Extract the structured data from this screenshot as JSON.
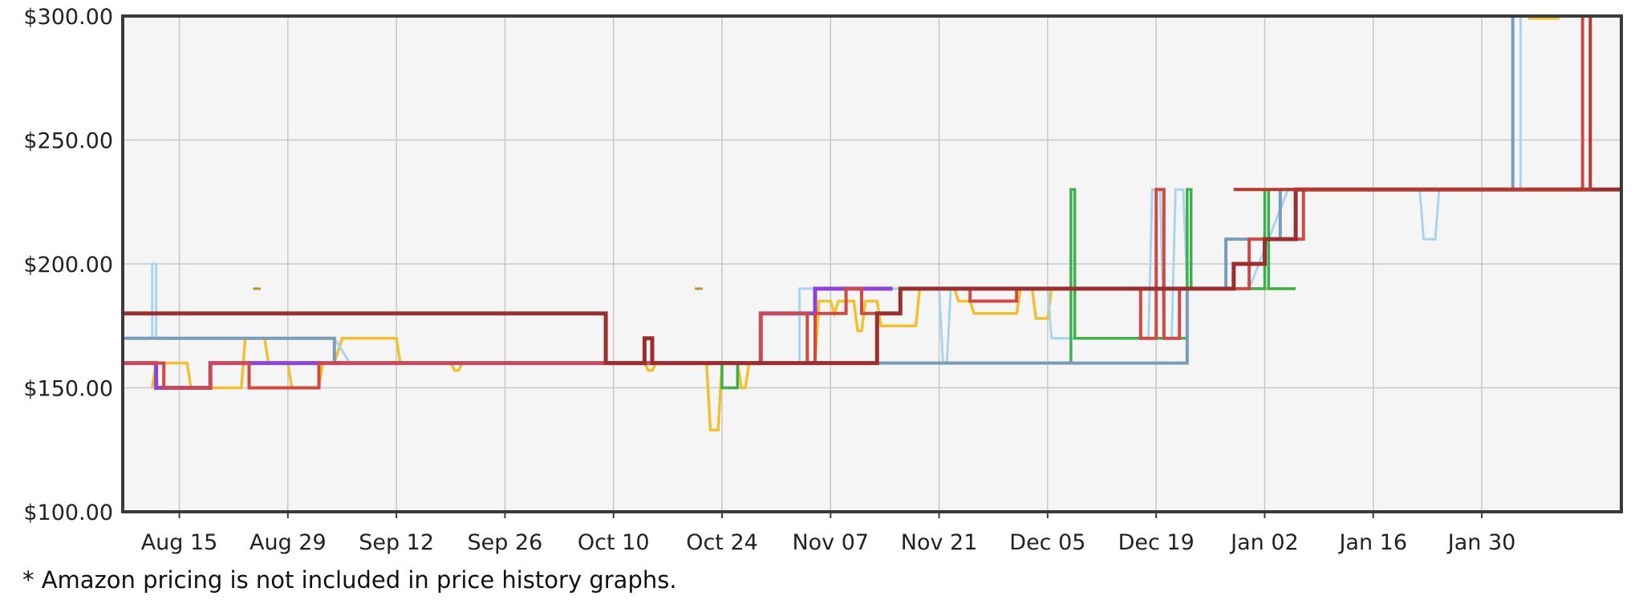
{
  "chart_data": {
    "type": "line",
    "subtype": "step",
    "title": "",
    "xlabel": "",
    "ylabel": "",
    "ylim": [
      100,
      300
    ],
    "y_ticks": [
      100,
      150,
      200,
      250,
      300
    ],
    "y_tick_labels": [
      "$100.00",
      "$150.00",
      "$200.00",
      "$250.00",
      "$300.00"
    ],
    "x_ticks": [
      "Aug 15",
      "Aug 29",
      "Sep 12",
      "Sep 26",
      "Oct 10",
      "Oct 24",
      "Nov 07",
      "Nov 21",
      "Dec 05",
      "Dec 19",
      "Jan 02",
      "Jan 16",
      "Jan 30"
    ],
    "xlim": [
      -7.3,
      186
    ],
    "grid": true,
    "legend": "none",
    "series": [
      {
        "color": "#f0c030",
        "width": 3.5,
        "points": [
          [
            -3.5,
            150
          ],
          [
            -3,
            160
          ],
          [
            1,
            160
          ],
          [
            1.5,
            150
          ],
          [
            8,
            150
          ],
          [
            8.5,
            170
          ],
          [
            11,
            170
          ],
          [
            11.5,
            160
          ],
          [
            14,
            160
          ],
          [
            14.5,
            150
          ],
          [
            18,
            150
          ],
          [
            18.5,
            160
          ],
          [
            20,
            160
          ],
          [
            21,
            170
          ],
          [
            28,
            170
          ],
          [
            28.5,
            160
          ],
          [
            35,
            160
          ],
          [
            35.5,
            157
          ],
          [
            36,
            157
          ],
          [
            36.5,
            160
          ],
          [
            60,
            160
          ],
          [
            60.5,
            157
          ],
          [
            61,
            157
          ],
          [
            61.5,
            160
          ],
          [
            68,
            160
          ],
          [
            68.5,
            133
          ],
          [
            69.5,
            133
          ],
          [
            70,
            160
          ],
          [
            72,
            160
          ],
          [
            72.5,
            150
          ],
          [
            73,
            150
          ],
          [
            73.5,
            160
          ],
          [
            82,
            160
          ],
          [
            82.5,
            185
          ],
          [
            84,
            185
          ],
          [
            84.5,
            180
          ],
          [
            85,
            185
          ],
          [
            87,
            185
          ],
          [
            87.5,
            173
          ],
          [
            88,
            173
          ],
          [
            88.5,
            185
          ],
          [
            90,
            185
          ],
          [
            90.5,
            175
          ],
          [
            95,
            175
          ],
          [
            95.5,
            190
          ],
          [
            100,
            190
          ],
          [
            100.5,
            185
          ],
          [
            102,
            185
          ],
          [
            102.5,
            180
          ],
          [
            108,
            180
          ],
          [
            108.5,
            190
          ],
          [
            110,
            190
          ],
          [
            110.5,
            178
          ],
          [
            112,
            178
          ],
          [
            112.5,
            190
          ],
          [
            144,
            190
          ]
        ]
      },
      {
        "color": "#a8d4f0",
        "width": 3,
        "points": [
          [
            -7.3,
            170
          ],
          [
            -3.5,
            170
          ],
          [
            -3.5,
            200
          ],
          [
            -3,
            200
          ],
          [
            -3,
            170
          ],
          [
            20,
            170
          ],
          [
            22,
            160
          ],
          [
            80,
            160
          ],
          [
            80,
            190
          ],
          [
            98,
            190
          ],
          [
            98.5,
            160
          ],
          [
            99,
            160
          ],
          [
            99.5,
            190
          ],
          [
            112,
            190
          ],
          [
            112.5,
            170
          ],
          [
            125,
            170
          ],
          [
            125.5,
            230
          ],
          [
            126.5,
            230
          ],
          [
            127,
            170
          ],
          [
            128,
            170
          ],
          [
            128.5,
            230
          ],
          [
            129.5,
            230
          ],
          [
            130,
            190
          ],
          [
            138,
            190
          ],
          [
            143,
            230
          ],
          [
            160,
            230
          ],
          [
            160.5,
            210
          ],
          [
            162,
            210
          ],
          [
            162.5,
            230
          ],
          [
            173,
            230
          ],
          [
            173,
            300
          ],
          [
            186,
            300
          ]
        ]
      },
      {
        "color": "#3cb04a",
        "width": 3.5,
        "points": [
          [
            -7.3,
            160
          ],
          [
            -3,
            160
          ],
          [
            -3,
            150
          ],
          [
            4,
            150
          ],
          [
            4,
            160
          ],
          [
            70,
            160
          ],
          [
            70,
            150
          ],
          [
            72,
            150
          ],
          [
            72,
            160
          ],
          [
            115,
            160
          ],
          [
            115,
            230
          ],
          [
            115.5,
            230
          ],
          [
            115.5,
            170
          ],
          [
            130,
            170
          ],
          [
            130,
            230
          ],
          [
            130.5,
            230
          ],
          [
            130.5,
            190
          ],
          [
            140,
            190
          ],
          [
            140,
            230
          ],
          [
            140.5,
            230
          ],
          [
            140.5,
            190
          ],
          [
            144,
            190
          ]
        ]
      },
      {
        "color": "#7a9cba",
        "width": 4,
        "points": [
          [
            -7.3,
            170
          ],
          [
            20,
            170
          ],
          [
            20,
            160
          ],
          [
            130,
            160
          ],
          [
            130,
            190
          ],
          [
            135,
            190
          ],
          [
            135,
            210
          ],
          [
            142,
            210
          ],
          [
            142,
            230
          ],
          [
            180,
            230
          ],
          [
            180,
            230
          ],
          [
            172,
            230
          ],
          [
            172,
            300
          ],
          [
            186,
            300
          ]
        ]
      },
      {
        "color": "#8e44d8",
        "width": 5,
        "points": [
          [
            -7.3,
            160
          ],
          [
            -3,
            160
          ],
          [
            -3,
            150
          ],
          [
            4,
            150
          ],
          [
            4,
            160
          ],
          [
            20,
            160
          ],
          [
            20,
            160
          ],
          [
            75,
            160
          ],
          [
            75,
            180
          ],
          [
            82,
            180
          ],
          [
            82,
            190
          ],
          [
            92,
            190
          ]
        ]
      },
      {
        "color": "#d04a44",
        "width": 4,
        "points": [
          [
            -7.3,
            160
          ],
          [
            -2,
            160
          ],
          [
            -2,
            150
          ],
          [
            4,
            150
          ],
          [
            4,
            160
          ],
          [
            9,
            160
          ],
          [
            9,
            150
          ],
          [
            18,
            150
          ],
          [
            18,
            160
          ],
          [
            75,
            160
          ],
          [
            75,
            180
          ],
          [
            81,
            180
          ],
          [
            81,
            160
          ],
          [
            82,
            160
          ],
          [
            82,
            180
          ],
          [
            86,
            180
          ],
          [
            86,
            190
          ],
          [
            88,
            190
          ],
          [
            88,
            180
          ],
          [
            93,
            180
          ],
          [
            93,
            190
          ],
          [
            102,
            190
          ],
          [
            102,
            185
          ],
          [
            108,
            185
          ],
          [
            108,
            190
          ],
          [
            124,
            190
          ],
          [
            124,
            170
          ],
          [
            126,
            170
          ],
          [
            126,
            230
          ],
          [
            127,
            230
          ],
          [
            127,
            170
          ],
          [
            129,
            170
          ],
          [
            129,
            190
          ],
          [
            138,
            190
          ],
          [
            138,
            210
          ],
          [
            145,
            210
          ],
          [
            145,
            230
          ],
          [
            166,
            230
          ],
          [
            166,
            230
          ],
          [
            175,
            230
          ],
          [
            175,
            230
          ],
          [
            177,
            230
          ],
          [
            177,
            230
          ],
          [
            181,
            230
          ],
          [
            181,
            300
          ],
          [
            186,
            300
          ]
        ]
      },
      {
        "color": "#9a2f2f",
        "width": 5,
        "points": [
          [
            -7.3,
            180
          ],
          [
            55,
            180
          ],
          [
            55,
            160
          ],
          [
            60,
            160
          ],
          [
            60,
            170
          ],
          [
            61,
            170
          ],
          [
            61,
            160
          ],
          [
            75,
            160
          ],
          [
            75,
            160
          ],
          [
            90,
            160
          ],
          [
            90,
            180
          ],
          [
            93,
            180
          ],
          [
            93,
            190
          ],
          [
            106,
            190
          ],
          [
            106,
            190
          ],
          [
            110,
            190
          ],
          [
            110,
            190
          ],
          [
            136,
            190
          ],
          [
            136,
            200
          ],
          [
            140,
            200
          ],
          [
            140,
            210
          ],
          [
            144,
            210
          ],
          [
            144,
            230
          ],
          [
            186,
            230
          ],
          [
            186,
            230
          ]
        ]
      },
      {
        "color": "#b5392f",
        "width": 4,
        "points": [
          [
            136,
            230
          ],
          [
            182,
            230
          ],
          [
            182,
            300
          ],
          [
            186,
            300
          ]
        ]
      },
      {
        "color": "#b8942a",
        "width": 3,
        "points": [
          [
            9.5,
            190
          ],
          [
            10.5,
            190
          ]
        ]
      },
      {
        "color": "#b8942a",
        "width": 3,
        "points": [
          [
            66.5,
            190
          ],
          [
            67.5,
            190
          ]
        ]
      },
      {
        "color": "#f0c030",
        "width": 3,
        "points": [
          [
            174,
            299
          ],
          [
            178,
            299
          ]
        ]
      }
    ]
  },
  "footnote": "* Amazon pricing is not included in price history graphs."
}
